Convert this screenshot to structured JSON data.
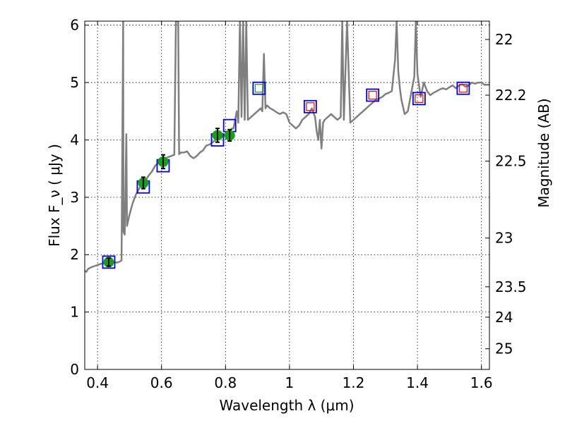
{
  "chart_data": {
    "type": "scatter",
    "xlabel": "Wavelength  λ (μm)",
    "ylabel_left": "Flux  F_ν  ( μJy )",
    "ylabel_right": "Magnitude (AB)",
    "xlim": [
      0.36,
      1.625
    ],
    "ylim": [
      0,
      6.07
    ],
    "x_ticks": [
      0.4,
      0.6,
      0.8,
      1.0,
      1.2,
      1.4,
      1.6
    ],
    "x_tick_labels": [
      "0.4",
      "0.6",
      "0.8",
      "1",
      "1.2",
      "1.4",
      "1.6"
    ],
    "y_ticks": [
      0,
      1,
      2,
      3,
      4,
      5,
      6
    ],
    "y_tick_labels": [
      "0",
      "1",
      "2",
      "3",
      "4",
      "5",
      "6"
    ],
    "right_ticks": [
      {
        "label": "22",
        "flux": 5.75
      },
      {
        "label": "22.2",
        "flux": 4.78
      },
      {
        "label": "22.5",
        "flux": 3.63
      },
      {
        "label": "23",
        "flux": 2.29
      },
      {
        "label": "23.5",
        "flux": 1.44
      },
      {
        "label": "24",
        "flux": 0.91
      },
      {
        "label": "25",
        "flux": 0.36
      }
    ],
    "grid": true,
    "colors": {
      "model_line": "#7f7f7f",
      "observed_fill": "#15a015",
      "box_edge": "#0000ee",
      "inner_red": "#ee0000",
      "inner_green": "#15a015",
      "errorbar": "#000000"
    },
    "model_spectrum": [
      [
        0.36,
        1.72
      ],
      [
        0.365,
        1.7
      ],
      [
        0.37,
        1.75
      ],
      [
        0.38,
        1.78
      ],
      [
        0.39,
        1.8
      ],
      [
        0.4,
        1.82
      ],
      [
        0.41,
        1.84
      ],
      [
        0.42,
        1.85
      ],
      [
        0.43,
        1.86
      ],
      [
        0.44,
        1.86
      ],
      [
        0.45,
        1.87
      ],
      [
        0.46,
        1.86
      ],
      [
        0.47,
        1.88
      ],
      [
        0.475,
        1.9
      ],
      [
        0.48,
        6.07
      ],
      [
        0.481,
        2.4
      ],
      [
        0.485,
        2.35
      ],
      [
        0.49,
        4.1
      ],
      [
        0.492,
        2.5
      ],
      [
        0.5,
        2.7
      ],
      [
        0.51,
        2.9
      ],
      [
        0.52,
        3.05
      ],
      [
        0.53,
        3.15
      ],
      [
        0.54,
        3.25
      ],
      [
        0.55,
        3.3
      ],
      [
        0.56,
        3.38
      ],
      [
        0.57,
        3.45
      ],
      [
        0.58,
        3.55
      ],
      [
        0.59,
        3.6
      ],
      [
        0.6,
        3.62
      ],
      [
        0.61,
        3.66
      ],
      [
        0.62,
        3.7
      ],
      [
        0.63,
        3.72
      ],
      [
        0.64,
        3.74
      ],
      [
        0.645,
        6.07
      ],
      [
        0.652,
        6.07
      ],
      [
        0.655,
        3.75
      ],
      [
        0.66,
        3.78
      ],
      [
        0.67,
        3.78
      ],
      [
        0.68,
        3.8
      ],
      [
        0.69,
        3.72
      ],
      [
        0.7,
        3.68
      ],
      [
        0.71,
        3.72
      ],
      [
        0.72,
        3.78
      ],
      [
        0.73,
        3.82
      ],
      [
        0.74,
        3.9
      ],
      [
        0.75,
        3.92
      ],
      [
        0.76,
        3.96
      ],
      [
        0.77,
        4.0
      ],
      [
        0.78,
        4.02
      ],
      [
        0.79,
        4.05
      ],
      [
        0.8,
        4.1
      ],
      [
        0.81,
        4.12
      ],
      [
        0.82,
        4.2
      ],
      [
        0.825,
        4.2
      ],
      [
        0.83,
        4.35
      ],
      [
        0.835,
        4.5
      ],
      [
        0.84,
        4.3
      ],
      [
        0.845,
        6.07
      ],
      [
        0.85,
        4.4
      ],
      [
        0.855,
        6.07
      ],
      [
        0.86,
        4.35
      ],
      [
        0.865,
        6.07
      ],
      [
        0.87,
        4.35
      ],
      [
        0.88,
        4.4
      ],
      [
        0.89,
        4.45
      ],
      [
        0.9,
        4.5
      ],
      [
        0.91,
        4.55
      ],
      [
        0.915,
        4.5
      ],
      [
        0.92,
        5.5
      ],
      [
        0.925,
        4.55
      ],
      [
        0.93,
        4.6
      ],
      [
        0.94,
        4.55
      ],
      [
        0.95,
        4.52
      ],
      [
        0.96,
        4.48
      ],
      [
        0.97,
        4.45
      ],
      [
        0.98,
        4.48
      ],
      [
        0.99,
        4.45
      ],
      [
        1.0,
        4.3
      ],
      [
        1.01,
        4.25
      ],
      [
        1.02,
        4.2
      ],
      [
        1.03,
        4.25
      ],
      [
        1.04,
        4.35
      ],
      [
        1.05,
        4.4
      ],
      [
        1.06,
        4.45
      ],
      [
        1.07,
        4.55
      ],
      [
        1.08,
        4.4
      ],
      [
        1.085,
        4.15
      ],
      [
        1.09,
        4.0
      ],
      [
        1.095,
        4.35
      ],
      [
        1.1,
        3.85
      ],
      [
        1.105,
        4.3
      ],
      [
        1.11,
        4.35
      ],
      [
        1.12,
        4.4
      ],
      [
        1.13,
        4.45
      ],
      [
        1.14,
        4.4
      ],
      [
        1.15,
        4.35
      ],
      [
        1.16,
        4.4
      ],
      [
        1.165,
        6.07
      ],
      [
        1.17,
        4.35
      ],
      [
        1.18,
        6.07
      ],
      [
        1.19,
        4.3
      ],
      [
        1.2,
        4.35
      ],
      [
        1.21,
        4.4
      ],
      [
        1.22,
        4.45
      ],
      [
        1.23,
        4.5
      ],
      [
        1.24,
        4.55
      ],
      [
        1.25,
        4.6
      ],
      [
        1.26,
        4.65
      ],
      [
        1.27,
        4.7
      ],
      [
        1.28,
        4.72
      ],
      [
        1.29,
        4.75
      ],
      [
        1.3,
        4.8
      ],
      [
        1.31,
        4.82
      ],
      [
        1.32,
        4.85
      ],
      [
        1.33,
        5.4
      ],
      [
        1.335,
        6.07
      ],
      [
        1.34,
        5.2
      ],
      [
        1.345,
        4.9
      ],
      [
        1.35,
        4.7
      ],
      [
        1.36,
        4.45
      ],
      [
        1.37,
        4.5
      ],
      [
        1.38,
        4.8
      ],
      [
        1.39,
        5.1
      ],
      [
        1.395,
        6.07
      ],
      [
        1.4,
        5.15
      ],
      [
        1.41,
        4.75
      ],
      [
        1.42,
        5.0
      ],
      [
        1.43,
        4.85
      ],
      [
        1.44,
        4.78
      ],
      [
        1.45,
        4.82
      ],
      [
        1.46,
        4.85
      ],
      [
        1.47,
        4.88
      ],
      [
        1.48,
        4.9
      ],
      [
        1.49,
        4.88
      ],
      [
        1.5,
        4.92
      ],
      [
        1.51,
        4.95
      ],
      [
        1.52,
        4.9
      ],
      [
        1.53,
        4.95
      ],
      [
        1.54,
        4.97
      ],
      [
        1.55,
        4.93
      ],
      [
        1.56,
        4.95
      ],
      [
        1.57,
        5.0
      ],
      [
        1.58,
        4.98
      ],
      [
        1.59,
        5.0
      ],
      [
        1.6,
        5.0
      ],
      [
        1.61,
        4.96
      ],
      [
        1.625,
        4.96
      ]
    ],
    "observed_points": [
      {
        "x": 0.435,
        "y": 1.87,
        "err": 0.07
      },
      {
        "x": 0.543,
        "y": 3.25,
        "err": 0.1
      },
      {
        "x": 0.605,
        "y": 3.62,
        "err": 0.12
      },
      {
        "x": 0.775,
        "y": 4.08,
        "err": 0.12
      },
      {
        "x": 0.813,
        "y": 4.08,
        "err": 0.1
      }
    ],
    "model_boxes": [
      {
        "x": 0.435,
        "y": 1.87,
        "inner": "none"
      },
      {
        "x": 0.543,
        "y": 3.18,
        "inner": "none"
      },
      {
        "x": 0.605,
        "y": 3.55,
        "inner": "none"
      },
      {
        "x": 0.775,
        "y": 4.0,
        "inner": "none"
      },
      {
        "x": 0.813,
        "y": 4.25,
        "inner": "none"
      },
      {
        "x": 0.905,
        "y": 4.9,
        "inner": "green"
      },
      {
        "x": 1.065,
        "y": 4.58,
        "inner": "red"
      },
      {
        "x": 1.26,
        "y": 4.78,
        "inner": "red"
      },
      {
        "x": 1.405,
        "y": 4.72,
        "inner": "red"
      },
      {
        "x": 1.543,
        "y": 4.9,
        "inner": "red"
      }
    ]
  }
}
